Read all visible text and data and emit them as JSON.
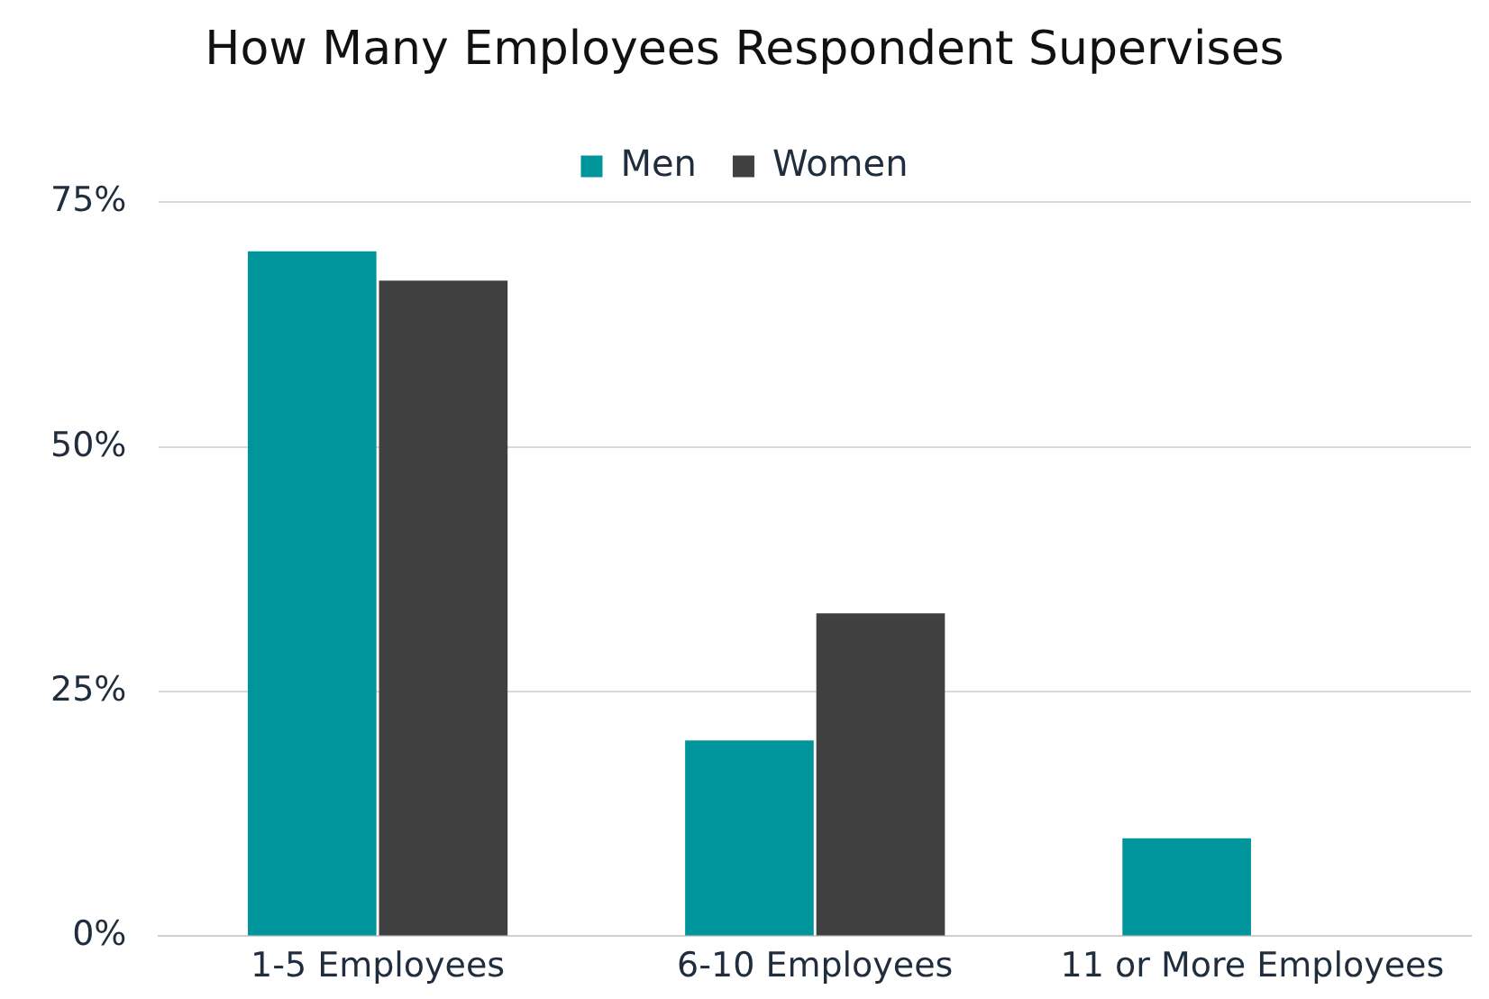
{
  "chart_data": {
    "type": "bar",
    "title": "How Many Employees Respondent Supervises",
    "categories": [
      "1-5 Employees",
      "6-10 Employees",
      "11 or More Employees"
    ],
    "series": [
      {
        "name": "Men",
        "color": "#00959a",
        "values": [
          70,
          20,
          10
        ]
      },
      {
        "name": "Women",
        "color": "#404040",
        "values": [
          67,
          33,
          0
        ]
      }
    ],
    "ylim": [
      0,
      75
    ],
    "yticks": [
      {
        "value": 0,
        "label": "0%"
      },
      {
        "value": 25,
        "label": "25%"
      },
      {
        "value": 50,
        "label": "50%"
      },
      {
        "value": 75,
        "label": "75%"
      }
    ],
    "grid": "y",
    "legend": "top"
  }
}
